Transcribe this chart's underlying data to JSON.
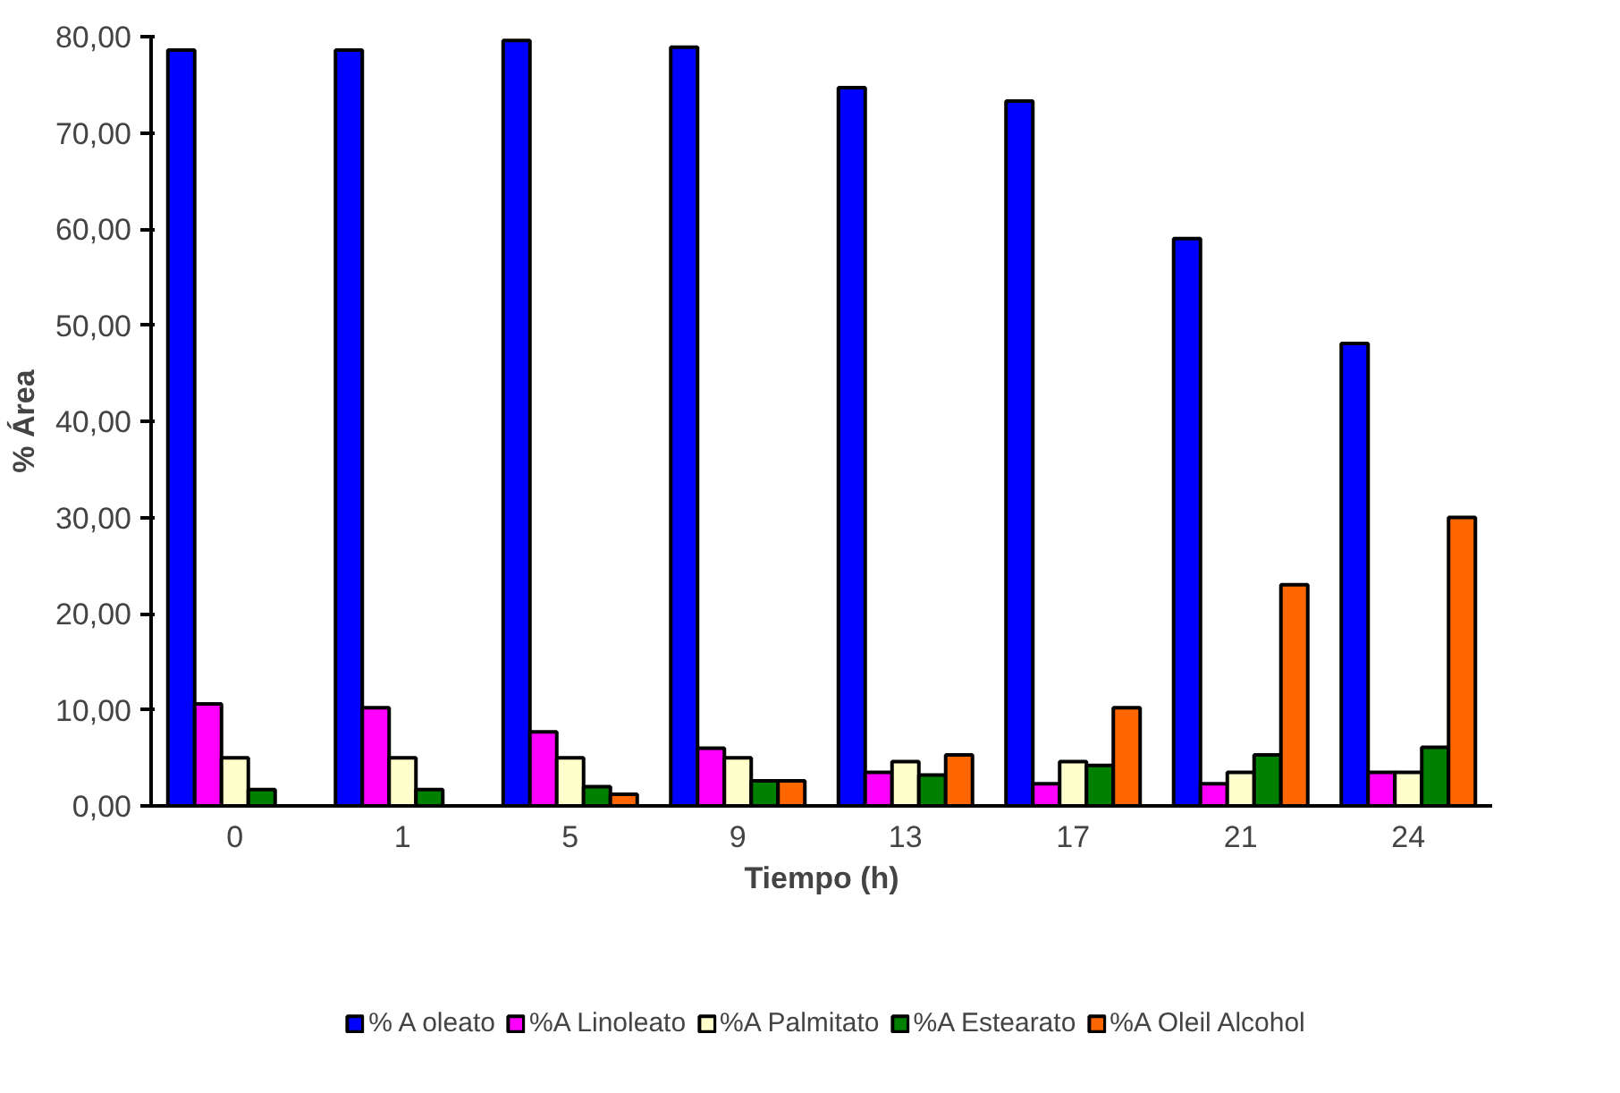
{
  "chart_data": {
    "type": "bar",
    "xlabel": "Tiempo (h)",
    "ylabel": "% Área",
    "categories": [
      "0",
      "1",
      "5",
      "9",
      "13",
      "17",
      "21",
      "24"
    ],
    "series": [
      {
        "name": "% A oleato",
        "color": "#0000ff",
        "values": [
          78.6,
          78.6,
          79.6,
          78.9,
          74.7,
          73.3,
          59.0,
          48.1
        ]
      },
      {
        "name": "%A Linoleato",
        "color": "#ff00ff",
        "values": [
          10.6,
          10.2,
          7.7,
          6.0,
          3.5,
          2.3,
          2.3,
          3.5
        ]
      },
      {
        "name": "%A Palmitato",
        "color": "#ffffcc",
        "values": [
          5.0,
          5.0,
          5.0,
          5.0,
          4.6,
          4.6,
          3.5,
          3.5
        ]
      },
      {
        "name": "%A Estearato",
        "color": "#008000",
        "values": [
          1.7,
          1.7,
          2.0,
          2.6,
          3.2,
          4.2,
          5.3,
          6.1
        ]
      },
      {
        "name": "%A Oleil Alcohol",
        "color": "#ff6600",
        "values": [
          null,
          null,
          1.2,
          2.6,
          5.3,
          10.2,
          23.0,
          30.0
        ]
      }
    ],
    "ylim": [
      0,
      80
    ],
    "yticks": [
      {
        "value": 0,
        "label": "0,00"
      },
      {
        "value": 10,
        "label": "10,00"
      },
      {
        "value": 20,
        "label": "20,00"
      },
      {
        "value": 30,
        "label": "30,00"
      },
      {
        "value": 40,
        "label": "40,00"
      },
      {
        "value": 50,
        "label": "50,00"
      },
      {
        "value": 60,
        "label": "60,00"
      },
      {
        "value": 70,
        "label": "70,00"
      },
      {
        "value": 80,
        "label": "80,00"
      }
    ],
    "grid": false,
    "legend": "bottom"
  }
}
